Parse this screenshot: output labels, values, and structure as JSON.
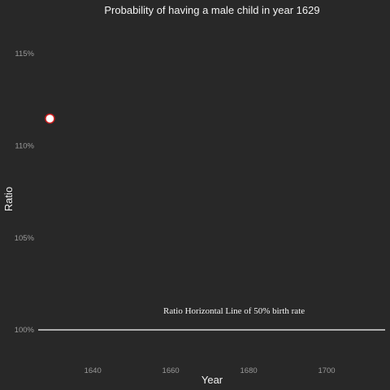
{
  "chart_data": {
    "type": "scatter",
    "title": "Probability of having a male child in year 1629",
    "xlabel": "Year",
    "ylabel": "Ratio",
    "xlim": [
      1626,
      1715
    ],
    "ylim": [
      0.985,
      1.166
    ],
    "x_ticks": [
      {
        "value": 1640,
        "label": "1640"
      },
      {
        "value": 1660,
        "label": "1660"
      },
      {
        "value": 1680,
        "label": "1680"
      },
      {
        "value": 1700,
        "label": "1700"
      }
    ],
    "y_ticks": [
      {
        "value": 1.0,
        "label": "100%"
      },
      {
        "value": 1.05,
        "label": "105%"
      },
      {
        "value": 1.1,
        "label": "110%"
      },
      {
        "value": 1.15,
        "label": "115%"
      }
    ],
    "points": [
      {
        "x": 1629,
        "y": 1.1148
      }
    ],
    "reference_line": {
      "y": 1.0,
      "label": "Ratio Horizontal Line of 50% birth rate",
      "label_x": 1680
    },
    "grid": false,
    "colors": {
      "background": "#282828",
      "point_fill": "#ffffff",
      "point_stroke": "#cc1f1f",
      "line": "#ffffff",
      "text": "#f2f2f2",
      "tick_text": "#9a9a9a"
    }
  }
}
